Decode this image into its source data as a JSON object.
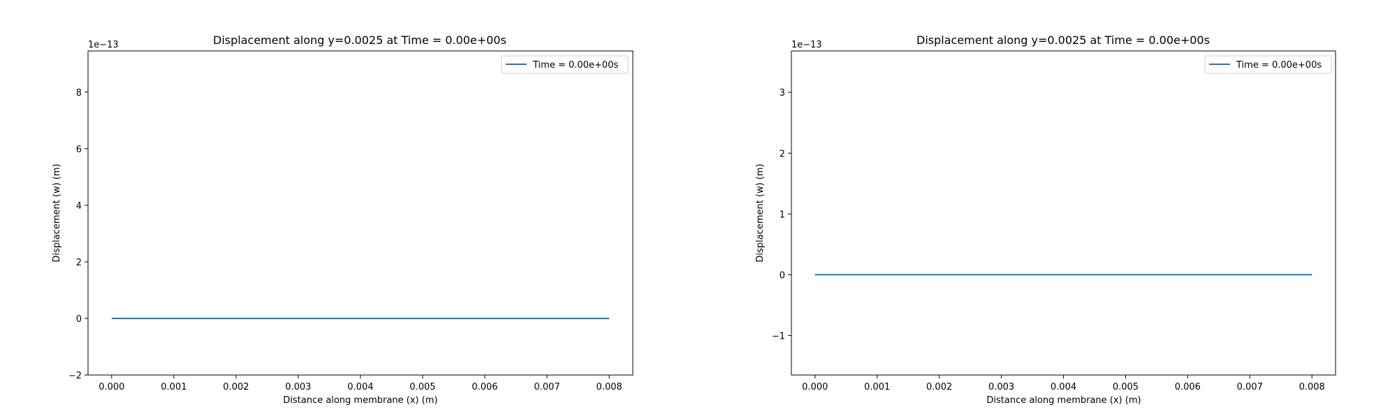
{
  "chart_data": [
    {
      "type": "line",
      "title": "Displacement along y=0.0025 at Time = 0.00e+00s",
      "xlabel": "Distance along membrane (x) (m)",
      "ylabel": "Displacement (w) (m)",
      "offset_text": "1e−13",
      "xlim": [
        -0.00038,
        0.00838
      ],
      "ylim": [
        -2.0,
        9.45
      ],
      "x_ticks": [
        0.0,
        0.001,
        0.002,
        0.003,
        0.004,
        0.005,
        0.006,
        0.007,
        0.008
      ],
      "x_tick_labels": [
        "0.000",
        "0.001",
        "0.002",
        "0.003",
        "0.004",
        "0.005",
        "0.006",
        "0.007",
        "0.008"
      ],
      "y_ticks": [
        -2,
        0,
        2,
        4,
        6,
        8
      ],
      "y_tick_labels": [
        "−2",
        "0",
        "2",
        "4",
        "6",
        "8"
      ],
      "legend_position": "upper right",
      "series": [
        {
          "name": "Time = 0.00e+00s",
          "color": "#1f77b4",
          "x": [
            0.0,
            0.008
          ],
          "y": [
            0.0,
            0.0
          ]
        }
      ]
    },
    {
      "type": "line",
      "title": "Displacement along y=0.0025 at Time = 0.00e+00s",
      "xlabel": "Distance along membrane (x) (m)",
      "ylabel": "Displacement (w) (m)",
      "offset_text": "1e−13",
      "xlim": [
        -0.00038,
        0.00838
      ],
      "ylim": [
        -1.65,
        3.68
      ],
      "x_ticks": [
        0.0,
        0.001,
        0.002,
        0.003,
        0.004,
        0.005,
        0.006,
        0.007,
        0.008
      ],
      "x_tick_labels": [
        "0.000",
        "0.001",
        "0.002",
        "0.003",
        "0.004",
        "0.005",
        "0.006",
        "0.007",
        "0.008"
      ],
      "y_ticks": [
        -1,
        0,
        1,
        2,
        3
      ],
      "y_tick_labels": [
        "−1",
        "0",
        "1",
        "2",
        "3"
      ],
      "legend_position": "upper right",
      "series": [
        {
          "name": "Time = 0.00e+00s",
          "color": "#1f77b4",
          "x": [
            0.0,
            0.008
          ],
          "y": [
            0.0,
            0.0
          ]
        }
      ]
    }
  ]
}
